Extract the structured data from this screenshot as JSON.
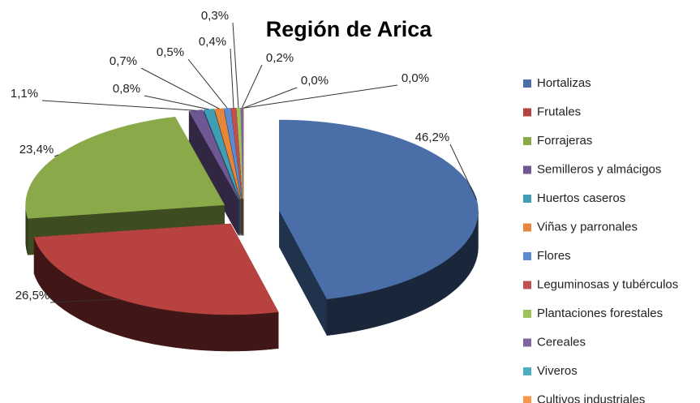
{
  "chart_data": {
    "type": "pie3d",
    "title": "Región de Arica",
    "categories": [
      "Hortalizas",
      "Frutales",
      "Forrajeras",
      "Semilleros y almácigos",
      "Huertos caseros",
      "Viñas y parronales",
      "Flores",
      "Leguminosas y tubérculos",
      "Plantaciones forestales",
      "Cereales",
      "Viveros",
      "Cultivos industriales"
    ],
    "values": [
      46.2,
      26.5,
      23.4,
      1.1,
      0.8,
      0.7,
      0.5,
      0.4,
      0.3,
      0.2,
      0.0,
      0.0
    ],
    "value_labels": [
      "46,2%",
      "26,5%",
      "23,4%",
      "1,1%",
      "0,8%",
      "0,7%",
      "0,5%",
      "0,4%",
      "0,3%",
      "0,2%",
      "0,0%",
      "0,0%"
    ],
    "colors": [
      "#4a6fa8",
      "#b8423f",
      "#8aaa4a",
      "#6f5793",
      "#3f9db6",
      "#e5863c",
      "#5b8bd0",
      "#c0504d",
      "#9dc35a",
      "#8064a2",
      "#4bacc6",
      "#f79646"
    ],
    "legend": "right"
  }
}
